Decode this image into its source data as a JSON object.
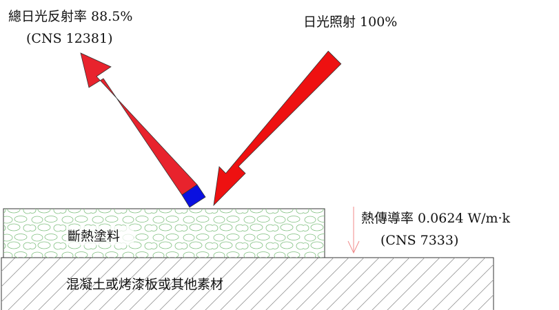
{
  "labels": {
    "reflectance_line1": "總日光反射率 88.5%",
    "reflectance_line2": "(CNS 12381)",
    "irradiation": "日光照射 100%",
    "conductivity_line1": "熱傳導率 0.0624 W/m·k",
    "conductivity_line2": "(CNS 7333)",
    "coating": "斷熱塗料",
    "substrate": "混凝土或烤漆板或其他素材"
  },
  "colors": {
    "incident_arrow": "#ee1111",
    "reflected_arrow": "#e8232d",
    "reflected_tip": "#0a10e0",
    "coating_pattern": "#7fbf7f",
    "substrate_hatch": "#9a9a9a",
    "heat_arrow": "#f08a8a",
    "outline": "#333333"
  }
}
